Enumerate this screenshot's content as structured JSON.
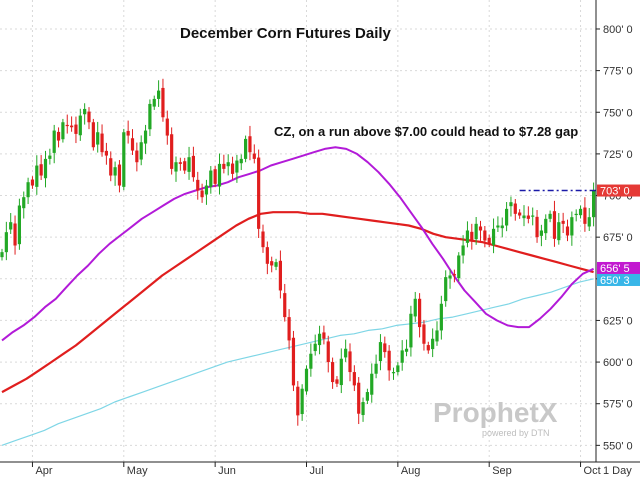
{
  "chart_data": {
    "type": "candlestick",
    "title": "December Corn Futures Daily",
    "annotation": "CZ, on a run above $7.00 could head to $7.28 gap",
    "watermark": {
      "brand": "ProphetX",
      "tagline": "powered by DTN"
    },
    "timeframe_label": "1 Day",
    "ylim": [
      540,
      815
    ],
    "y_ticks": [
      {
        "value": 550,
        "label": "550' 0"
      },
      {
        "value": 575,
        "label": "575' 0"
      },
      {
        "value": 600,
        "label": "600' 0"
      },
      {
        "value": 625,
        "label": "625' 0"
      },
      {
        "value": 650,
        "label": "650' 0"
      },
      {
        "value": 675,
        "label": "675' 0"
      },
      {
        "value": 700,
        "label": "700' 0"
      },
      {
        "value": 725,
        "label": "725' 0"
      },
      {
        "value": 750,
        "label": "750' 0"
      },
      {
        "value": 775,
        "label": "775' 0"
      },
      {
        "value": 800,
        "label": "800' 0"
      }
    ],
    "x_ticks": [
      {
        "index": 7,
        "label": "Apr"
      },
      {
        "index": 28,
        "label": "May"
      },
      {
        "index": 49,
        "label": "Jun"
      },
      {
        "index": 70,
        "label": "Jul"
      },
      {
        "index": 91,
        "label": "Aug"
      },
      {
        "index": 112,
        "label": "Sep"
      },
      {
        "index": 133,
        "label": "Oct"
      }
    ],
    "price_labels": [
      {
        "value": 703,
        "text": "703' 0",
        "color": "#e53935"
      },
      {
        "value": 656.5,
        "text": "656' 5",
        "color": "#c218d0"
      },
      {
        "value": 650.3,
        "text": "650' 3",
        "color": "#38b6e8"
      }
    ],
    "gap_level": {
      "value": 703,
      "from_index": 119,
      "color": "#1a1aa8"
    },
    "colors": {
      "up": "#22a825",
      "down": "#e01e1e",
      "ma_magenta": "#b21ad8",
      "ma_red": "#e01e1e",
      "ma_cyan": "#7fd6e6",
      "grid": "#d9d9d9"
    },
    "closes": [
      666,
      678,
      684,
      670,
      694,
      699,
      708,
      706,
      718,
      712,
      722,
      724,
      739,
      733,
      744,
      742,
      741,
      737,
      748,
      752,
      744,
      729,
      738,
      726,
      724,
      712,
      717,
      706,
      738,
      736,
      727,
      720,
      732,
      739,
      755,
      758,
      763,
      747,
      736,
      716,
      720,
      719,
      715,
      723,
      711,
      703,
      699,
      706,
      715,
      707,
      719,
      716,
      720,
      713,
      721,
      722,
      734,
      726,
      722,
      680,
      669,
      659,
      658,
      660,
      643,
      627,
      613,
      586,
      568,
      584,
      596,
      605,
      611,
      617,
      614,
      600,
      588,
      587,
      602,
      608,
      594,
      586,
      569,
      576,
      582,
      593,
      599,
      612,
      606,
      595,
      594,
      598,
      607,
      608,
      629,
      638,
      621,
      611,
      607,
      614,
      619,
      635,
      651,
      652,
      652,
      664,
      670,
      679,
      673,
      683,
      679,
      673,
      671,
      680,
      682,
      682,
      692,
      696,
      689,
      688,
      688,
      686,
      688,
      675,
      679,
      686,
      689,
      674,
      684,
      683,
      676,
      687,
      689,
      692,
      683,
      687,
      703
    ],
    "ma_magenta": [
      613,
      618,
      622,
      627,
      633,
      638,
      645,
      652,
      658,
      665,
      671,
      676,
      681,
      686,
      690,
      694,
      698,
      701,
      703,
      705,
      706,
      708,
      711,
      713,
      715,
      718,
      720,
      722,
      724,
      726,
      728,
      729,
      728,
      725,
      720,
      714,
      707,
      699,
      690,
      681,
      671,
      662,
      652,
      643,
      636,
      629,
      625,
      622,
      621,
      621,
      626,
      632,
      639,
      647,
      653,
      656
    ],
    "ma_red": [
      582,
      586,
      590,
      595,
      600,
      605,
      610,
      616,
      622,
      628,
      634,
      640,
      646,
      652,
      657,
      662,
      667,
      672,
      677,
      682,
      686,
      689,
      690,
      690,
      690,
      689,
      689,
      688,
      687,
      686,
      685,
      684,
      683,
      682,
      680,
      677,
      675,
      674,
      673,
      672,
      670,
      668,
      666,
      664,
      662,
      660,
      658,
      656,
      654
    ],
    "ma_cyan": [
      550,
      553,
      556,
      559,
      563,
      566,
      569,
      572,
      576,
      579,
      582,
      585,
      588,
      591,
      594,
      597,
      600,
      602,
      604,
      606,
      608,
      610,
      612,
      614,
      616,
      617,
      619,
      620,
      622,
      623,
      624,
      626,
      627,
      629,
      631,
      633,
      635,
      638,
      640,
      642,
      645,
      648,
      650
    ]
  }
}
